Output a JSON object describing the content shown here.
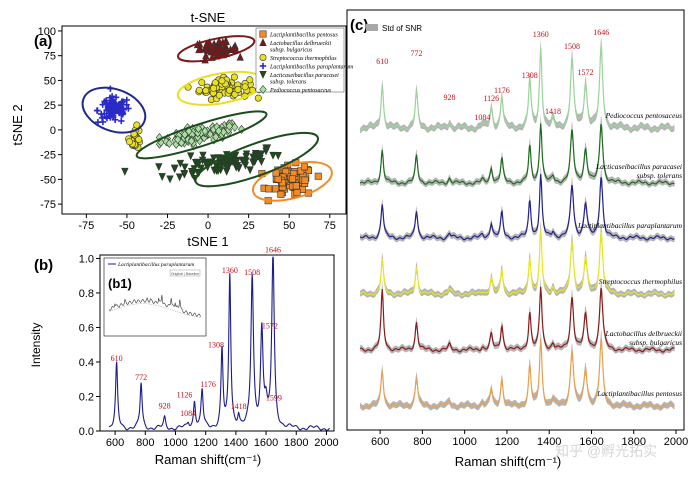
{
  "panel_labels": {
    "a": "(a)",
    "b": "(b)",
    "b1": "(b1)",
    "c": "(c)"
  },
  "chart_data": [
    {
      "panel": "a",
      "type": "scatter",
      "title": "t-SNE",
      "xlabel": "tSNE 1",
      "ylabel": "tSNE 2",
      "xlim": [
        -90,
        85
      ],
      "ylim": [
        -85,
        105
      ],
      "xticks": [
        -75,
        -50,
        -25,
        0,
        25,
        50,
        75
      ],
      "yticks": [
        -75,
        -50,
        -25,
        0,
        25,
        50,
        75,
        100
      ],
      "legend_position": "top-right",
      "series": [
        {
          "name": "Lactiplantibacillus pentosus",
          "color": "#f28c28",
          "marker": "square",
          "center": [
            52,
            -52
          ],
          "spread": [
            12,
            14
          ],
          "count": 70,
          "ellipse": {
            "cx": 52,
            "cy": -52,
            "rx": 25,
            "ry": 17,
            "angle": 15,
            "color": "#f28c28"
          }
        },
        {
          "name": "Lactobacillus delbrueckii subsp. bulgaricus",
          "color": "#7b1818",
          "marker": "triangle",
          "center": [
            5,
            82
          ],
          "spread": [
            12,
            6
          ],
          "count": 55,
          "ellipse": {
            "cx": 5,
            "cy": 82,
            "rx": 24,
            "ry": 10,
            "angle": 12,
            "color": "#7b1818"
          }
        },
        {
          "name": "Streptococcus thermophilus",
          "color": "#e8e020",
          "marker": "circle",
          "center": [
            10,
            42
          ],
          "spread": [
            14,
            9
          ],
          "count": 75,
          "ellipse": {
            "cx": 8,
            "cy": 42,
            "rx": 27,
            "ry": 15,
            "angle": 10,
            "color": "#e8e020"
          }
        },
        {
          "name": "Lactiplantibacillus paraplantarum",
          "color": "#2a2ac8",
          "marker": "plus",
          "center": [
            -58,
            20
          ],
          "spread": [
            9,
            12
          ],
          "count": 85,
          "ellipse": {
            "cx": -58,
            "cy": 20,
            "rx": 20,
            "ry": 21,
            "angle": -20,
            "color": "#1f2a8c"
          }
        },
        {
          "name": "Lacticaseibacillus paracasei subsp. tolerans",
          "color": "#1b4d1b",
          "marker": "triangle-down",
          "center": [
            10,
            -33
          ],
          "spread": [
            32,
            10
          ],
          "count": 95,
          "ellipse": {
            "cx": 30,
            "cy": -30,
            "rx": 40,
            "ry": 16,
            "angle": 20,
            "color": "#1b4d1b"
          }
        },
        {
          "name": "Pediococcus pentosaceus",
          "color": "#a8e0a0",
          "marker": "diamond",
          "center": [
            -5,
            -5
          ],
          "spread": [
            22,
            7
          ],
          "count": 90,
          "ellipse": {
            "cx": -4,
            "cy": -5,
            "rx": 42,
            "ry": 11,
            "angle": 18,
            "color": "#1b4d1b"
          }
        }
      ],
      "extra_cluster": {
        "label_series": "Streptococcus thermophilus",
        "center": [
          -45,
          -8
        ],
        "spread": [
          3,
          9
        ],
        "count": 22
      }
    },
    {
      "panel": "b",
      "type": "line",
      "xlabel": "Raman shift(cm⁻¹)",
      "ylabel": "Intensity",
      "xlim": [
        500,
        2050
      ],
      "ylim": [
        0,
        1.02
      ],
      "xticks": [
        600,
        800,
        1000,
        1200,
        1400,
        1600,
        1800,
        2000
      ],
      "yticks": [
        0.0,
        0.2,
        0.4,
        0.6,
        0.8,
        1.0
      ],
      "ytick_labels": [
        "0.0",
        "0.2",
        "0.4",
        "0.6",
        "0.8",
        "1.0"
      ],
      "series": [
        {
          "name": "Lactiplantibacillus paraplantarum",
          "color": "#1c1c8c",
          "peaks": [
            {
              "x": 610,
              "y": 0.37,
              "label": "610"
            },
            {
              "x": 772,
              "y": 0.26,
              "label": "772"
            },
            {
              "x": 928,
              "y": 0.06,
              "label": "928"
            },
            {
              "x": 1084,
              "y": 0.03,
              "label": "1084"
            },
            {
              "x": 1126,
              "y": 0.16,
              "label": "1126"
            },
            {
              "x": 1176,
              "y": 0.22,
              "label": "1176"
            },
            {
              "x": 1308,
              "y": 0.45,
              "label": "1308"
            },
            {
              "x": 1360,
              "y": 0.88,
              "label": "1360"
            },
            {
              "x": 1418,
              "y": 0.07,
              "label": "1418"
            },
            {
              "x": 1508,
              "y": 0.87,
              "label": "1508"
            },
            {
              "x": 1572,
              "y": 0.56,
              "label": "1572"
            },
            {
              "x": 1599,
              "y": 0.12,
              "label": "1599"
            },
            {
              "x": 1646,
              "y": 1.0,
              "label": "1646"
            }
          ]
        }
      ],
      "inset": {
        "label": "(b1)",
        "title": "Lactiplantibacillus paraplantarum",
        "legend": "Original | Baseline"
      }
    },
    {
      "panel": "c",
      "type": "line",
      "xlabel": "Raman shift(cm⁻¹)",
      "xlim": [
        500,
        2000
      ],
      "xticks": [
        600,
        800,
        1000,
        1200,
        1400,
        1600,
        1800,
        2000
      ],
      "xtick_labels": [
        "600",
        "800",
        "1000",
        "1200",
        "1400",
        "1600",
        "1800",
        "2000"
      ],
      "legend": "Std of SNR",
      "peak_labels": [
        {
          "x": 610,
          "label": "610"
        },
        {
          "x": 772,
          "label": "772"
        },
        {
          "x": 928,
          "label": "928"
        },
        {
          "x": 1084,
          "label": "1084"
        },
        {
          "x": 1126,
          "label": "1126"
        },
        {
          "x": 1176,
          "label": "1176"
        },
        {
          "x": 1308,
          "label": "1308"
        },
        {
          "x": 1360,
          "label": "1360"
        },
        {
          "x": 1418,
          "label": "1418"
        },
        {
          "x": 1508,
          "label": "1508"
        },
        {
          "x": 1572,
          "label": "1572"
        },
        {
          "x": 1646,
          "label": "1646"
        }
      ],
      "series": [
        {
          "name": "Pediococcus pentosaceus",
          "label_lines": [
            "Pediococcus pentosaceus"
          ],
          "color": "#9cd49c"
        },
        {
          "name": "Lacticaseibacillus paracasei subsp. tolerans",
          "label_lines": [
            "Lacticaseibacillus paracasei",
            "subsp. tolerans"
          ],
          "color": "#1e6b1e"
        },
        {
          "name": "Lactiplantibacillus paraplantarum",
          "label_lines": [
            "Lactiplantibacillus paraplantarum"
          ],
          "color": "#22228c"
        },
        {
          "name": "Streptococcus thermophilus",
          "label_lines": [
            "Streptococcus thermophilus"
          ],
          "color": "#e6e620"
        },
        {
          "name": "Lactobacillus delbrueckii subsp. bulgaricus",
          "label_lines": [
            "Lactobacillus delbrueckii",
            "subsp. bulgaricus"
          ],
          "color": "#8b1a1a"
        },
        {
          "name": "Lactiplantibacillus pentosus",
          "label_lines": [
            "Lactiplantibacillus pentosus"
          ],
          "color": "#e8a050"
        }
      ]
    }
  ],
  "watermark": "知乎 @孵光拓实"
}
